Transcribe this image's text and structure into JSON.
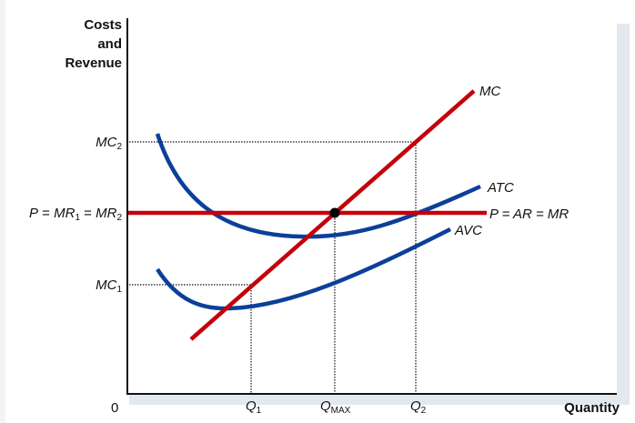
{
  "axes": {
    "y_label": [
      "Costs",
      "and",
      "Revenue"
    ],
    "x_label": "Quantity",
    "origin": "0"
  },
  "y_ticks": {
    "mc2": {
      "main": "MC",
      "sub": "2"
    },
    "price": {
      "p": "P",
      "eq1": " = ",
      "mr1": "MR",
      "sub1": "1",
      "eq2": " = ",
      "mr2": "MR",
      "sub2": "2"
    },
    "mc1": {
      "main": "MC",
      "sub": "1"
    }
  },
  "x_ticks": {
    "q1": {
      "main": "Q",
      "sub": "1"
    },
    "qmax": {
      "main": "Q",
      "sub": "MAX"
    },
    "q2": {
      "main": "Q",
      "sub": "2"
    }
  },
  "curves": {
    "mc": "MC",
    "atc": "ATC",
    "avc": "AVC",
    "demand": "P = AR = MR"
  },
  "colors": {
    "cost_curve": "#0b3f9a",
    "revenue_mc": "#c4000b",
    "axis": "#111111",
    "shadow": "#e4e8ef"
  }
}
